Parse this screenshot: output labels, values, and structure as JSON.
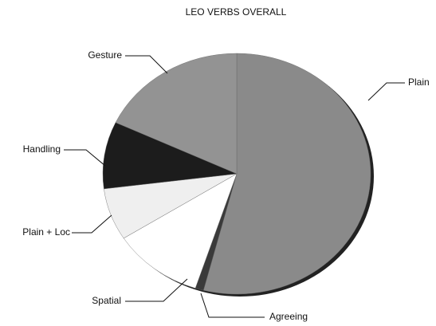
{
  "chart_data": {
    "type": "pie",
    "title": "LEO VERBS OVERALL",
    "categories": [
      "Plain",
      "Agreeing",
      "Spatial",
      "Plain + Loc",
      "Handling",
      "Gesture"
    ],
    "values": [
      54,
      1,
      11,
      7,
      9,
      18
    ],
    "colors": [
      "#8a8a8a",
      "#3a3a3a",
      "#ffffff",
      "#efefef",
      "#1c1c1c",
      "#939393"
    ]
  }
}
